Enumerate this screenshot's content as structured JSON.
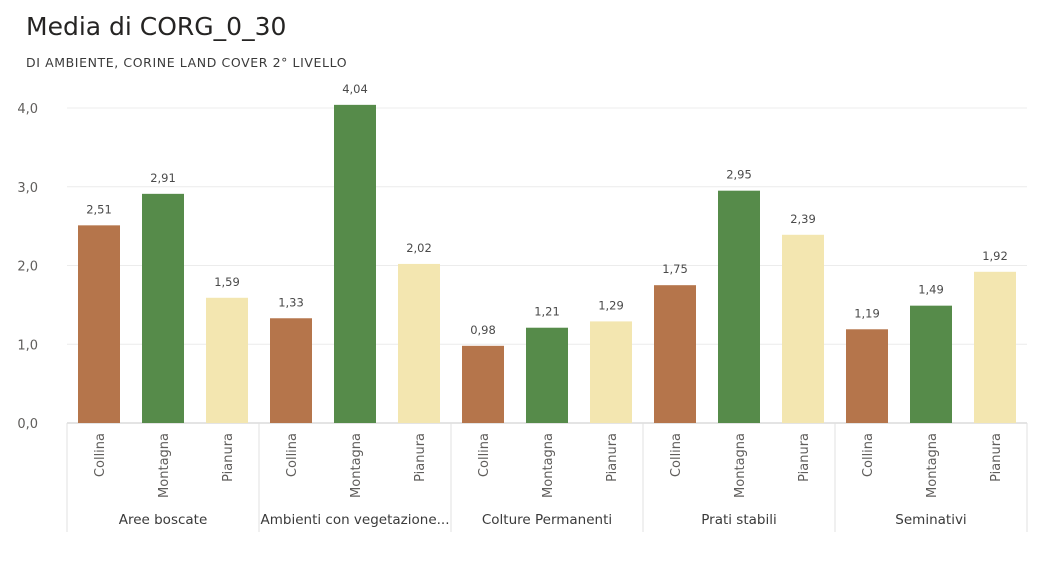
{
  "header": {
    "title": "Media di CORG_0_30",
    "subtitle": "DI AMBIENTE, CORINE LAND COVER 2° LIVELLO"
  },
  "chart_data": {
    "type": "bar",
    "title": "Media di CORG_0_30",
    "subtitle": "DI AMBIENTE, CORINE LAND COVER 2° LIVELLO",
    "ylim": [
      0,
      4.0
    ],
    "yticks": [
      "0,0",
      "1,0",
      "2,0",
      "3,0",
      "4,0"
    ],
    "grid": true,
    "colors": {
      "Collina": "#b5754b",
      "Montagna": "#568b4a",
      "Pianura": "#f3e6b0"
    },
    "groups": [
      {
        "label": "Aree boscate",
        "bars": [
          {
            "category": "Collina",
            "value": 2.51,
            "label": "2,51"
          },
          {
            "category": "Montagna",
            "value": 2.91,
            "label": "2,91"
          },
          {
            "category": "Pianura",
            "value": 1.59,
            "label": "1,59"
          }
        ]
      },
      {
        "label": "Ambienti con vegetazione...",
        "bars": [
          {
            "category": "Collina",
            "value": 1.33,
            "label": "1,33"
          },
          {
            "category": "Montagna",
            "value": 4.04,
            "label": "4,04"
          },
          {
            "category": "Pianura",
            "value": 2.02,
            "label": "2,02"
          }
        ]
      },
      {
        "label": "Colture Permanenti",
        "bars": [
          {
            "category": "Collina",
            "value": 0.98,
            "label": "0,98"
          },
          {
            "category": "Montagna",
            "value": 1.21,
            "label": "1,21"
          },
          {
            "category": "Pianura",
            "value": 1.29,
            "label": "1,29"
          }
        ]
      },
      {
        "label": "Prati stabili",
        "bars": [
          {
            "category": "Collina",
            "value": 1.75,
            "label": "1,75"
          },
          {
            "category": "Montagna",
            "value": 2.95,
            "label": "2,95"
          },
          {
            "category": "Pianura",
            "value": 2.39,
            "label": "2,39"
          }
        ]
      },
      {
        "label": "Seminativi",
        "bars": [
          {
            "category": "Collina",
            "value": 1.19,
            "label": "1,19"
          },
          {
            "category": "Montagna",
            "value": 1.49,
            "label": "1,49"
          },
          {
            "category": "Pianura",
            "value": 1.92,
            "label": "1,92"
          }
        ]
      }
    ]
  }
}
